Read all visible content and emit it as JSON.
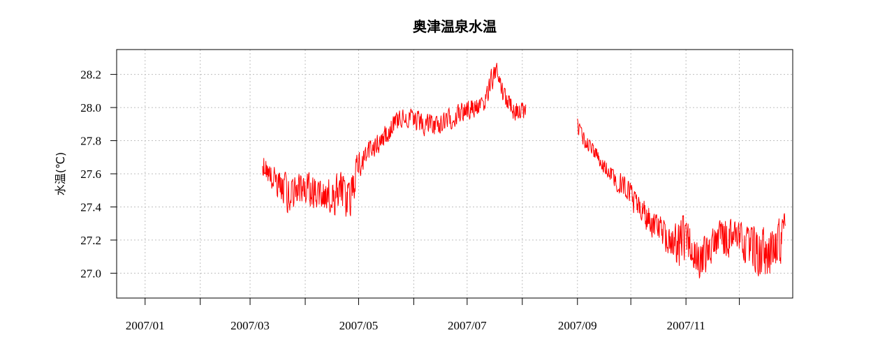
{
  "chart_data": {
    "type": "line",
    "title": "奥津温泉水温",
    "xlabel": "",
    "ylabel": "水温(℃)",
    "xlim": [
      "2006-12-16",
      "2007-12-31"
    ],
    "ylim": [
      26.85,
      28.35
    ],
    "x_ticks": [
      "2007-01-01",
      "2007-02-01",
      "2007-03-01",
      "2007-04-01",
      "2007-05-01",
      "2007-06-01",
      "2007-07-01",
      "2007-08-01",
      "2007-09-01",
      "2007-10-01",
      "2007-11-01",
      "2007-12-01"
    ],
    "x_tick_labels": [
      "2007/01",
      "",
      "2007/03",
      "",
      "2007/05",
      "",
      "2007/07",
      "",
      "2007/09",
      "",
      "2007/11",
      ""
    ],
    "y_ticks": [
      27.0,
      27.2,
      27.4,
      27.6,
      27.8,
      28.0,
      28.2
    ],
    "y_tick_labels": [
      "27.0",
      "27.2",
      "27.4",
      "27.6",
      "27.8",
      "28.0",
      "28.2"
    ],
    "grid": true,
    "line_color": "#ff0000",
    "series": [
      {
        "segments": [
          {
            "dates": [
              "2007-03-08",
              "2007-03-12",
              "2007-03-17",
              "2007-03-22",
              "2007-03-27",
              "2007-04-01",
              "2007-04-06",
              "2007-04-11",
              "2007-04-16",
              "2007-04-21",
              "2007-04-26",
              "2007-05-01",
              "2007-05-06",
              "2007-05-11",
              "2007-05-16",
              "2007-05-21",
              "2007-05-26",
              "2007-05-31",
              "2007-06-05",
              "2007-06-10",
              "2007-06-15",
              "2007-06-20",
              "2007-06-25",
              "2007-06-30",
              "2007-07-05",
              "2007-07-10",
              "2007-07-15",
              "2007-07-18",
              "2007-07-21",
              "2007-07-26",
              "2007-07-31",
              "2007-08-03"
            ],
            "upper": [
              27.75,
              27.68,
              27.64,
              27.62,
              27.6,
              27.63,
              27.6,
              27.58,
              27.6,
              27.65,
              27.58,
              27.78,
              27.8,
              27.84,
              27.9,
              27.98,
              28.04,
              28.0,
              27.99,
              27.98,
              27.96,
              28.0,
              28.02,
              28.05,
              28.08,
              28.06,
              28.27,
              28.28,
              28.15,
              28.08,
              28.05,
              28.04
            ],
            "lower": [
              27.58,
              27.5,
              27.43,
              27.35,
              27.38,
              27.4,
              27.37,
              27.36,
              27.34,
              27.3,
              27.3,
              27.55,
              27.65,
              27.7,
              27.75,
              27.83,
              27.88,
              27.86,
              27.83,
              27.79,
              27.82,
              27.85,
              27.88,
              27.9,
              27.92,
              27.95,
              28.08,
              28.18,
              28.0,
              27.92,
              27.9,
              27.92
            ]
          },
          {
            "dates": [
              "2007-09-01",
              "2007-09-05",
              "2007-09-10",
              "2007-09-15",
              "2007-09-20",
              "2007-09-25",
              "2007-09-30",
              "2007-10-05",
              "2007-10-10",
              "2007-10-15",
              "2007-10-20",
              "2007-10-25",
              "2007-10-30",
              "2007-11-04",
              "2007-11-09",
              "2007-11-14",
              "2007-11-19",
              "2007-11-24",
              "2007-11-29",
              "2007-12-04",
              "2007-12-09",
              "2007-12-14",
              "2007-12-19",
              "2007-12-24",
              "2007-12-27"
            ],
            "upper": [
              27.96,
              27.85,
              27.8,
              27.72,
              27.66,
              27.62,
              27.58,
              27.48,
              27.44,
              27.38,
              27.34,
              27.3,
              27.4,
              27.3,
              27.22,
              27.28,
              27.32,
              27.38,
              27.35,
              27.3,
              27.32,
              27.3,
              27.28,
              27.36,
              27.4
            ],
            "lower": [
              27.82,
              27.75,
              27.68,
              27.6,
              27.54,
              27.45,
              27.38,
              27.3,
              27.24,
              27.18,
              27.12,
              27.05,
              26.97,
              27.05,
              26.92,
              27.0,
              27.08,
              27.05,
              27.1,
              27.05,
              26.98,
              26.92,
              26.98,
              27.0,
              27.28
            ]
          }
        ]
      }
    ]
  }
}
